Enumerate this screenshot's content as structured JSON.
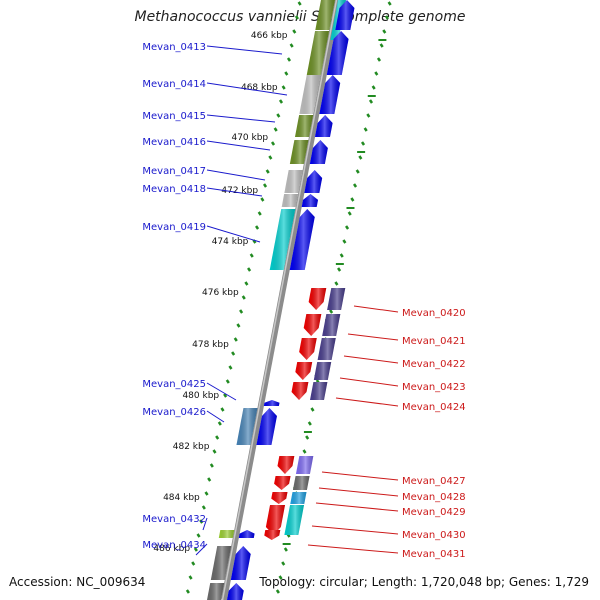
{
  "title": "Methanococcus vannielii SB, complete genome",
  "accession": "Accession: NC_009634",
  "topology": "Topology: circular; Length: 1,720,048 bp; Genes: 1,729",
  "colors": {
    "backbone": "#8c8c8c",
    "forward_strand": "#0000ee",
    "reverse_strand": "#ee0000",
    "ticks": "#228b22",
    "cog_olive": "#6b8e23",
    "cog_gray": "#bdbdbd",
    "cog_cyan": "#00cccc",
    "cog_slate": "#483d8b",
    "cog_steel": "#4682b4",
    "cog_dim": "#696969",
    "cog_lavender": "#7b68ee",
    "cog_sky": "#1e9fe0",
    "cog_lime": "#9acd32"
  },
  "scale_labels": [
    "466 kbp",
    "468 kbp",
    "470 kbp",
    "472 kbp",
    "474 kbp",
    "476 kbp",
    "478 kbp",
    "480 kbp",
    "482 kbp",
    "484 kbp",
    "486 kbp"
  ],
  "genes_left": [
    {
      "label": "Mevan_0413",
      "cog": "cog_olive"
    },
    {
      "label": "Mevan_0414",
      "cog": "cog_gray"
    },
    {
      "label": "Mevan_0415",
      "cog": "cog_olive"
    },
    {
      "label": "Mevan_0416",
      "cog": "cog_olive"
    },
    {
      "label": "Mevan_0417",
      "cog": "cog_gray"
    },
    {
      "label": "Mevan_0418",
      "cog": "cog_gray"
    },
    {
      "label": "Mevan_0419",
      "cog": "cog_cyan"
    },
    {
      "label": "Mevan_0425",
      "cog": ""
    },
    {
      "label": "Mevan_0426",
      "cog": "cog_steel"
    },
    {
      "label": "Mevan_0432",
      "cog": "cog_lime"
    },
    {
      "label": "Mevan_0434",
      "cog": "cog_dim"
    }
  ],
  "genes_right": [
    {
      "label": "Mevan_0420",
      "cog": "cog_slate"
    },
    {
      "label": "Mevan_0421",
      "cog": "cog_slate"
    },
    {
      "label": "Mevan_0422",
      "cog": "cog_slate"
    },
    {
      "label": "Mevan_0423",
      "cog": "cog_slate"
    },
    {
      "label": "Mevan_0424",
      "cog": "cog_slate"
    },
    {
      "label": "Mevan_0427",
      "cog": "cog_lavender"
    },
    {
      "label": "Mevan_0428",
      "cog": "cog_dim"
    },
    {
      "label": "Mevan_0429",
      "cog": "cog_sky"
    },
    {
      "label": "Mevan_0430",
      "cog": "cog_cyan"
    },
    {
      "label": "Mevan_0431",
      "cog": ""
    }
  ]
}
